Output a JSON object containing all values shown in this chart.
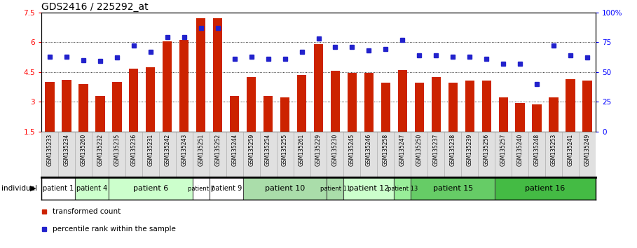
{
  "title": "GDS2416 / 225292_at",
  "samples": [
    "GSM135233",
    "GSM135234",
    "GSM135260",
    "GSM135232",
    "GSM135235",
    "GSM135236",
    "GSM135231",
    "GSM135242",
    "GSM135243",
    "GSM135251",
    "GSM135252",
    "GSM135244",
    "GSM135259",
    "GSM135254",
    "GSM135255",
    "GSM135261",
    "GSM135229",
    "GSM135230",
    "GSM135245",
    "GSM135246",
    "GSM135258",
    "GSM135247",
    "GSM135250",
    "GSM135237",
    "GSM135238",
    "GSM135239",
    "GSM135256",
    "GSM135257",
    "GSM135240",
    "GSM135248",
    "GSM135253",
    "GSM135241",
    "GSM135249"
  ],
  "bar_values": [
    4.0,
    4.1,
    3.9,
    3.3,
    4.0,
    4.65,
    4.75,
    6.05,
    6.1,
    7.2,
    7.2,
    3.3,
    4.25,
    3.3,
    3.2,
    4.35,
    5.9,
    4.55,
    4.45,
    4.45,
    3.95,
    4.6,
    3.95,
    4.25,
    3.95,
    4.05,
    4.05,
    3.2,
    2.95,
    2.85,
    3.2,
    4.15,
    4.05
  ],
  "percentile_values": [
    63,
    63,
    60,
    59,
    62,
    72,
    67,
    79,
    79,
    87,
    87,
    61,
    63,
    61,
    61,
    67,
    78,
    71,
    71,
    68,
    69,
    77,
    64,
    64,
    63,
    63,
    61,
    57,
    57,
    40,
    72,
    64,
    62
  ],
  "patients": [
    {
      "label": "patient 1",
      "start": 0,
      "end": 2,
      "color": "#ffffff"
    },
    {
      "label": "patient 4",
      "start": 2,
      "end": 4,
      "color": "#ccffcc"
    },
    {
      "label": "patient 6",
      "start": 4,
      "end": 9,
      "color": "#ccffcc"
    },
    {
      "label": "patient 7",
      "start": 9,
      "end": 10,
      "color": "#ffffff"
    },
    {
      "label": "patient 9",
      "start": 10,
      "end": 12,
      "color": "#ffffff"
    },
    {
      "label": "patient 10",
      "start": 12,
      "end": 17,
      "color": "#aaddaa"
    },
    {
      "label": "patient 11",
      "start": 17,
      "end": 18,
      "color": "#aaddaa"
    },
    {
      "label": "patient 12",
      "start": 18,
      "end": 21,
      "color": "#ccffcc"
    },
    {
      "label": "patient 13",
      "start": 21,
      "end": 22,
      "color": "#99ee99"
    },
    {
      "label": "patient 15",
      "start": 22,
      "end": 27,
      "color": "#66cc66"
    },
    {
      "label": "patient 16",
      "start": 27,
      "end": 33,
      "color": "#44bb44"
    }
  ],
  "bar_color": "#cc2200",
  "dot_color": "#2222cc",
  "ymin": 1.5,
  "ymax": 7.5,
  "yticks": [
    1.5,
    3.0,
    4.5,
    6.0,
    7.5
  ],
  "ytick_labels": [
    "1.5",
    "3",
    "4.5",
    "6",
    "7.5"
  ],
  "right_yticks": [
    0,
    25,
    50,
    75,
    100
  ],
  "right_ytick_labels": [
    "0",
    "25",
    "50",
    "75",
    "100%"
  ],
  "grid_values": [
    3.0,
    4.5,
    6.0
  ],
  "title_fontsize": 10,
  "bg_color": "#f0f0f0"
}
